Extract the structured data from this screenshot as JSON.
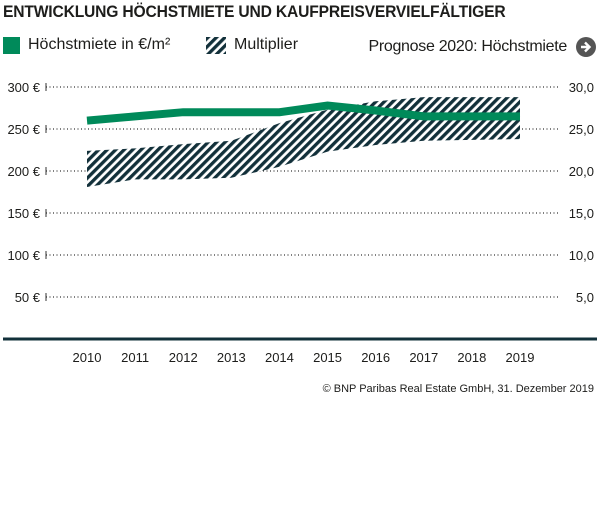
{
  "title": "ENTWICKLUNG HÖCHSTMIETE UND KAUFPREISVERVIELFÄLTIGER",
  "legend": {
    "rent_label": "Höchstmiete in €/m²",
    "multiplier_label": "Multiplier",
    "forecast_label": "Prognose 2020: Höchstmiete",
    "forecast_icon": "arrow-right-circle-icon"
  },
  "credit": "© BNP Paribas Real Estate GmbH, 31. Dezember 2019",
  "colors": {
    "rent": "#008a5a",
    "multiplier": "#12303a",
    "baseline": "#12303a"
  },
  "chart_data": {
    "type": "line",
    "categories": [
      "2010",
      "2011",
      "2012",
      "2013",
      "2014",
      "2015",
      "2016",
      "2017",
      "2018",
      "2019"
    ],
    "y_left": {
      "ticks": [
        50,
        100,
        150,
        200,
        250,
        300
      ],
      "tick_labels": [
        "50 €",
        "100 €",
        "150 €",
        "200 €",
        "250 €",
        "300 €"
      ],
      "range": [
        0,
        300
      ]
    },
    "y_right": {
      "ticks": [
        5,
        10,
        15,
        20,
        25,
        30
      ],
      "tick_labels": [
        "5,0",
        "10,0",
        "15,0",
        "20,0",
        "25,0",
        "30,0"
      ],
      "range": [
        0,
        30
      ]
    },
    "grid": true,
    "series": [
      {
        "name": "Höchstmiete in €/m²",
        "kind": "line",
        "axis": "left",
        "values": [
          260,
          265,
          270,
          270,
          270,
          278,
          272,
          265,
          265,
          265
        ]
      },
      {
        "name": "Multiplier",
        "kind": "band",
        "axis": "right",
        "upper": [
          22.4,
          22.7,
          23.2,
          23.6,
          25.7,
          27.3,
          28.3,
          28.8,
          28.8,
          28.8
        ],
        "lower": [
          18.1,
          19.0,
          19.0,
          19.2,
          20.5,
          22.3,
          23.1,
          23.6,
          23.7,
          23.8
        ]
      }
    ]
  }
}
